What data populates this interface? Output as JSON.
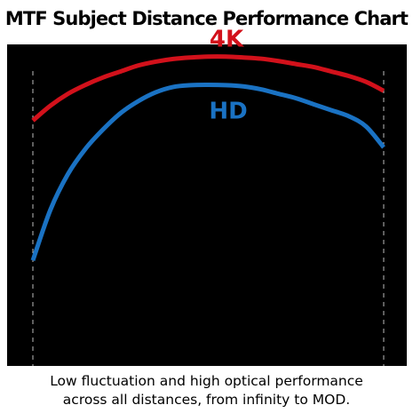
{
  "chart_title": "MTF Subject Distance Performance Chart",
  "caption": {
    "line1": "Low fluctuation and high optical performance",
    "line2": "across all distances, from infinity to MOD."
  },
  "colors": {
    "background": "#000000",
    "series_4k": "#d2111b",
    "series_hd": "#1a72c3",
    "marker_lines": "#bdbdbd"
  },
  "chart_data": {
    "type": "line",
    "title": "MTF Subject Distance Performance Chart",
    "xlabel": "",
    "ylabel": "",
    "xlim": [
      0,
      100
    ],
    "ylim": [
      0,
      100
    ],
    "grid": false,
    "legend": "none",
    "vertical_markers": [
      0,
      100
    ],
    "series": [
      {
        "name": "4K",
        "color": "#d2111b",
        "x": [
          0,
          5,
          10,
          15,
          20,
          25,
          30,
          35,
          40,
          45,
          50,
          55,
          60,
          65,
          70,
          75,
          80,
          85,
          90,
          95,
          100
        ],
        "y": [
          75,
          80,
          84,
          87,
          89.5,
          91.5,
          93.5,
          94.8,
          95.7,
          96.2,
          96.5,
          96.5,
          96.2,
          95.8,
          95,
          94,
          93,
          91.5,
          90,
          88,
          85
        ]
      },
      {
        "name": "HD",
        "color": "#1a72c3",
        "x": [
          0,
          5,
          10,
          15,
          20,
          25,
          30,
          35,
          40,
          45,
          50,
          55,
          60,
          65,
          70,
          75,
          80,
          85,
          90,
          95,
          100
        ],
        "y": [
          28,
          45,
          57,
          65.5,
          72,
          77.5,
          81.5,
          84.5,
          86.3,
          86.9,
          87,
          86.9,
          86.5,
          85.5,
          84,
          82.5,
          80.5,
          78.5,
          76.5,
          73,
          66
        ]
      }
    ]
  }
}
